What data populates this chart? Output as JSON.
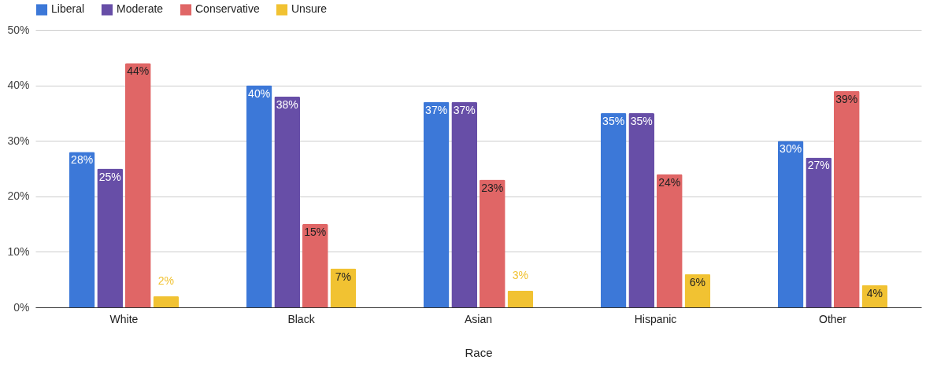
{
  "chart_data": {
    "type": "bar",
    "xlabel": "Race",
    "categories": [
      "White",
      "Black",
      "Asian",
      "Hispanic",
      "Other"
    ],
    "series": [
      {
        "name": "Liberal",
        "color": "#3c78d8",
        "values": [
          28,
          40,
          37,
          35,
          30
        ],
        "value_labels": [
          "28%",
          "40%",
          "37%",
          "35%",
          "30%"
        ]
      },
      {
        "name": "Moderate",
        "color": "#674ea7",
        "values": [
          25,
          38,
          37,
          35,
          27
        ],
        "value_labels": [
          "25%",
          "38%",
          "37%",
          "35%",
          "27%"
        ]
      },
      {
        "name": "Conservative",
        "color": "#e06666",
        "values": [
          44,
          15,
          23,
          24,
          39
        ],
        "value_labels": [
          "44%",
          "15%",
          "23%",
          "24%",
          "39%"
        ]
      },
      {
        "name": "Unsure",
        "color": "#f1c232",
        "values": [
          2,
          7,
          3,
          6,
          4
        ],
        "value_labels": [
          "2%",
          "7%",
          "3%",
          "6%",
          "4%"
        ]
      }
    ],
    "ylim": [
      0,
      50
    ],
    "yticks": [
      {
        "value": 0,
        "label": "0%"
      },
      {
        "value": 10,
        "label": "10%"
      },
      {
        "value": 20,
        "label": "20%"
      },
      {
        "value": 30,
        "label": "30%"
      },
      {
        "value": 40,
        "label": "40%"
      },
      {
        "value": 50,
        "label": "50%"
      }
    ],
    "grid": "y",
    "legend": "top"
  }
}
